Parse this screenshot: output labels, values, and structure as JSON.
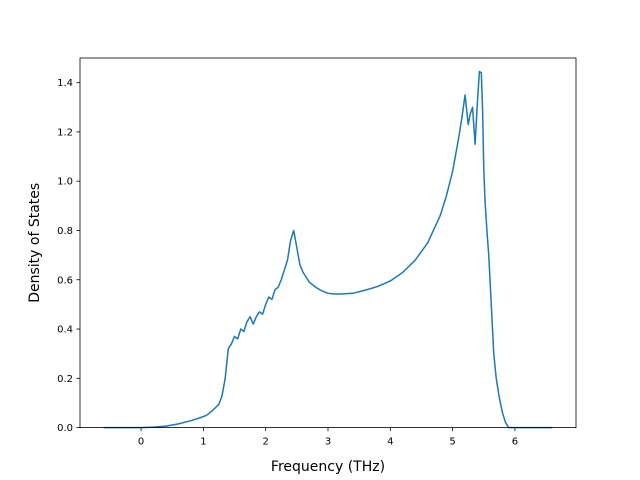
{
  "chart_data": {
    "type": "line",
    "title": "",
    "xlabel": "Frequency (THz)",
    "ylabel": "Density of States",
    "xlim": [
      -0.98,
      6.98
    ],
    "ylim": [
      0.0,
      1.5
    ],
    "xticks": [
      0,
      1,
      2,
      3,
      4,
      5,
      6
    ],
    "xtick_labels": [
      "0",
      "1",
      "2",
      "3",
      "4",
      "5",
      "6"
    ],
    "yticks": [
      0.0,
      0.2,
      0.4,
      0.6,
      0.8,
      1.0,
      1.2,
      1.4
    ],
    "ytick_labels": [
      "0.0",
      "0.2",
      "0.4",
      "0.6",
      "0.8",
      "1.0",
      "1.2",
      "1.4"
    ],
    "grid": false,
    "legend": null,
    "series": [
      {
        "color": "#1f77b4",
        "x": [
          -0.6,
          -0.2,
          0.0,
          0.2,
          0.4,
          0.6,
          0.8,
          0.95,
          1.05,
          1.15,
          1.25,
          1.3,
          1.35,
          1.4,
          1.45,
          1.5,
          1.55,
          1.6,
          1.65,
          1.7,
          1.75,
          1.8,
          1.85,
          1.9,
          1.95,
          2.0,
          2.05,
          2.1,
          2.15,
          2.2,
          2.25,
          2.3,
          2.35,
          2.4,
          2.45,
          2.5,
          2.55,
          2.6,
          2.7,
          2.8,
          2.9,
          3.0,
          3.1,
          3.2,
          3.4,
          3.6,
          3.8,
          4.0,
          4.2,
          4.4,
          4.6,
          4.8,
          4.9,
          5.0,
          5.1,
          5.15,
          5.2,
          5.25,
          5.28,
          5.32,
          5.36,
          5.4,
          5.43,
          5.46,
          5.48,
          5.5,
          5.52,
          5.55,
          5.58,
          5.62,
          5.66,
          5.7,
          5.75,
          5.8,
          5.85,
          5.9,
          5.95,
          6.0,
          6.05,
          6.6
        ],
        "y": [
          0.0,
          0.0,
          0.0,
          0.002,
          0.006,
          0.015,
          0.028,
          0.04,
          0.05,
          0.07,
          0.095,
          0.13,
          0.2,
          0.32,
          0.34,
          0.37,
          0.36,
          0.4,
          0.39,
          0.43,
          0.45,
          0.42,
          0.45,
          0.47,
          0.46,
          0.5,
          0.53,
          0.52,
          0.56,
          0.57,
          0.6,
          0.64,
          0.68,
          0.76,
          0.8,
          0.73,
          0.66,
          0.63,
          0.59,
          0.57,
          0.555,
          0.545,
          0.542,
          0.542,
          0.545,
          0.558,
          0.573,
          0.595,
          0.63,
          0.68,
          0.75,
          0.86,
          0.94,
          1.04,
          1.18,
          1.26,
          1.35,
          1.23,
          1.27,
          1.3,
          1.15,
          1.33,
          1.445,
          1.44,
          1.3,
          1.05,
          0.92,
          0.8,
          0.7,
          0.5,
          0.3,
          0.2,
          0.12,
          0.06,
          0.02,
          0.0,
          0.0,
          0.0,
          0.0,
          0.0
        ]
      }
    ]
  }
}
